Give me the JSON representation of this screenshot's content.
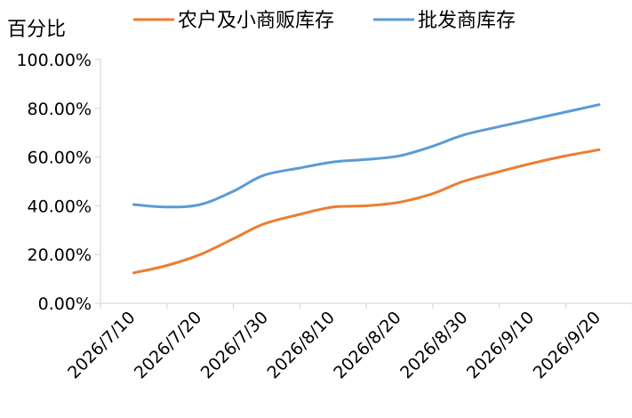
{
  "chart_data": {
    "type": "line",
    "ylabel": "百分比",
    "ylim": [
      0,
      100
    ],
    "yticks": [
      "0.00%",
      "20.00%",
      "40.00%",
      "60.00%",
      "80.00%",
      "100.00%"
    ],
    "xticks": [
      "2026/7/10",
      "2026/7/20",
      "2026/7/30",
      "2026/8/10",
      "2026/8/20",
      "2026/8/30",
      "2026/9/10",
      "2026/9/20"
    ],
    "grid": false,
    "legend_position": "top",
    "series": [
      {
        "name": "农户及小商贩库存",
        "color": "#ED7D31",
        "points": [
          {
            "x": "2026/7/15",
            "y": 12.5
          },
          {
            "x": "2026/7/20",
            "y": 15.5
          },
          {
            "x": "2026/7/25",
            "y": 20.0
          },
          {
            "x": "2026/7/30",
            "y": 26.5
          },
          {
            "x": "2026/8/4",
            "y": 32.5
          },
          {
            "x": "2026/8/10",
            "y": 36.5
          },
          {
            "x": "2026/8/15",
            "y": 39.5
          },
          {
            "x": "2026/8/20",
            "y": 40.0
          },
          {
            "x": "2026/8/25",
            "y": 41.5
          },
          {
            "x": "2026/8/30",
            "y": 45.0
          },
          {
            "x": "2026/9/4",
            "y": 50.0
          },
          {
            "x": "2026/9/10",
            "y": 54.0
          },
          {
            "x": "2026/9/15",
            "y": 57.5
          },
          {
            "x": "2026/9/20",
            "y": 60.5
          },
          {
            "x": "2026/9/25",
            "y": 63.0
          }
        ]
      },
      {
        "name": "批发商库存",
        "color": "#5B9BD5",
        "points": [
          {
            "x": "2026/7/15",
            "y": 40.5
          },
          {
            "x": "2026/7/20",
            "y": 39.5
          },
          {
            "x": "2026/7/25",
            "y": 40.5
          },
          {
            "x": "2026/7/30",
            "y": 46.0
          },
          {
            "x": "2026/8/4",
            "y": 52.5
          },
          {
            "x": "2026/8/10",
            "y": 55.5
          },
          {
            "x": "2026/8/15",
            "y": 58.0
          },
          {
            "x": "2026/8/20",
            "y": 59.0
          },
          {
            "x": "2026/8/25",
            "y": 60.5
          },
          {
            "x": "2026/8/30",
            "y": 64.5
          },
          {
            "x": "2026/9/4",
            "y": 69.0
          },
          {
            "x": "2026/9/10",
            "y": 72.5
          },
          {
            "x": "2026/9/15",
            "y": 75.5
          },
          {
            "x": "2026/9/20",
            "y": 78.5
          },
          {
            "x": "2026/9/25",
            "y": 81.5
          }
        ]
      }
    ]
  }
}
